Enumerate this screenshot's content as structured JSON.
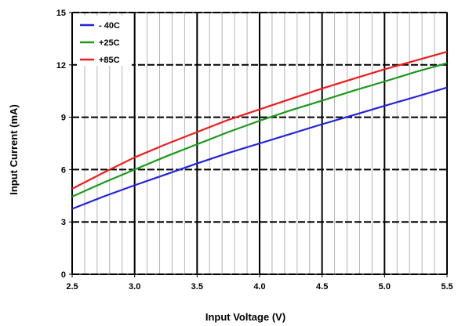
{
  "chart_data": {
    "type": "line",
    "title": "",
    "xlabel": "Input Voltage (V)",
    "ylabel": "Input Current (mA)",
    "xlim": [
      2.5,
      5.5
    ],
    "ylim": [
      0,
      15
    ],
    "x_ticks": [
      2.5,
      3.0,
      3.5,
      4.0,
      4.5,
      5.0,
      5.5
    ],
    "x_tick_labels": [
      "2.5",
      "3.0",
      "3.5",
      "4.0",
      "4.5",
      "5.0",
      "5.5"
    ],
    "y_ticks": [
      0,
      3,
      6,
      9,
      12,
      15
    ],
    "y_tick_labels": [
      "0",
      "3",
      "6",
      "9",
      "12",
      "15"
    ],
    "x_minor_step": 0.1,
    "grid": true,
    "legend_position": "top-left",
    "x": [
      2.5,
      2.75,
      3.0,
      3.25,
      3.5,
      3.75,
      4.0,
      4.25,
      4.5,
      4.75,
      5.0,
      5.25,
      5.5
    ],
    "series": [
      {
        "name": "- 40C",
        "color": "#2222dd",
        "values": [
          3.75,
          4.45,
          5.1,
          5.72,
          6.35,
          6.95,
          7.5,
          8.05,
          8.6,
          9.12,
          9.65,
          10.17,
          10.7
        ]
      },
      {
        "name": "+25C",
        "color": "#1a9a1a",
        "values": [
          4.45,
          5.25,
          6.0,
          6.75,
          7.45,
          8.15,
          8.8,
          9.4,
          9.95,
          10.52,
          11.05,
          11.6,
          12.1
        ]
      },
      {
        "name": "+85C",
        "color": "#ee1c1c",
        "values": [
          4.9,
          5.82,
          6.7,
          7.45,
          8.15,
          8.85,
          9.45,
          10.05,
          10.65,
          11.2,
          11.75,
          12.25,
          12.75
        ]
      }
    ]
  }
}
